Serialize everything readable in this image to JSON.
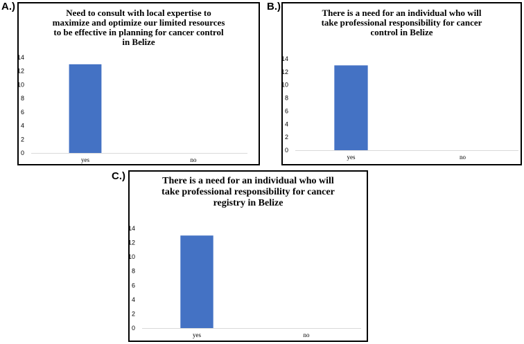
{
  "panels": [
    {
      "letter": "A.)",
      "title_lines": [
        "Need to consult with local expertise to",
        "maximize and optimize our limited resources",
        "to be effective in planning for cancer control",
        "in Belize"
      ]
    },
    {
      "letter": "B.)",
      "title_lines": [
        "There is a need for an individual who will",
        "take professional responsibility for cancer",
        "control in Belize"
      ]
    },
    {
      "letter": "C.)",
      "title_lines": [
        "There is a need for an individual who will",
        "take professional responsibility for cancer",
        "registry in Belize"
      ]
    }
  ],
  "chart_data": [
    {
      "type": "bar",
      "title": "Need to consult with local expertise to maximize and optimize our limited resources to be effective in planning for cancer control in Belize",
      "categories": [
        "yes",
        "no"
      ],
      "values": [
        13,
        0
      ],
      "ylim": [
        0,
        14
      ],
      "yticks": [
        0,
        2,
        4,
        6,
        8,
        10,
        12,
        14
      ],
      "grid": false,
      "color": "#4472C4"
    },
    {
      "type": "bar",
      "title": "There is a need for an individual who will take professional responsibility for cancer control in Belize",
      "categories": [
        "yes",
        "no"
      ],
      "values": [
        13,
        0
      ],
      "ylim": [
        0,
        14
      ],
      "yticks": [
        0,
        2,
        4,
        6,
        8,
        10,
        12,
        14
      ],
      "grid": false,
      "color": "#4472C4"
    },
    {
      "type": "bar",
      "title": "There is a need for an individual who will take professional responsibility for cancer registry in Belize",
      "categories": [
        "yes",
        "no"
      ],
      "values": [
        13,
        0
      ],
      "ylim": [
        0,
        14
      ],
      "yticks": [
        0,
        2,
        4,
        6,
        8,
        10,
        12,
        14
      ],
      "grid": false,
      "color": "#4472C4"
    }
  ]
}
